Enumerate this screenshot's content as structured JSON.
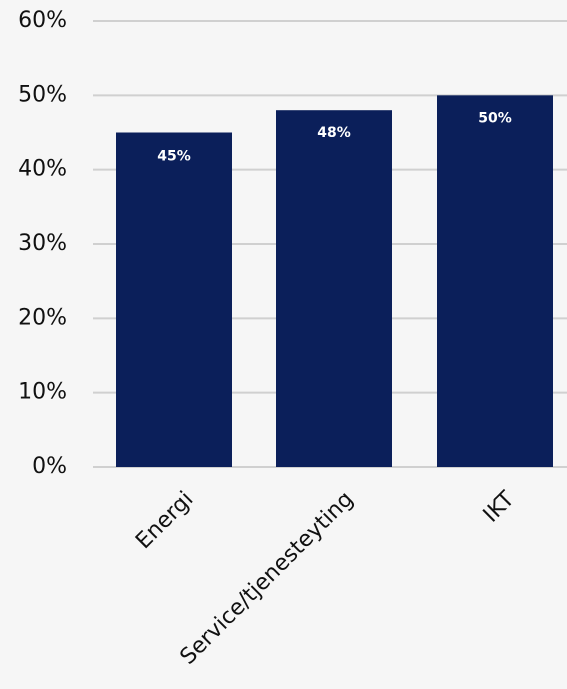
{
  "chart_data": {
    "type": "bar",
    "categories": [
      "Energi",
      "Service/tjenesteyting",
      "IKT"
    ],
    "values": [
      45,
      48,
      50
    ],
    "data_labels": [
      "45%",
      "48%",
      "50%"
    ],
    "y_ticks": [
      "0%",
      "10%",
      "20%",
      "30%",
      "40%",
      "50%",
      "60%"
    ],
    "y_tick_values": [
      0,
      10,
      20,
      30,
      40,
      50,
      60
    ],
    "ylim": [
      0,
      60
    ],
    "grid": true,
    "legend": "none"
  },
  "colors": {
    "bar": "#0b1f5a",
    "grid": "#d0d0d0",
    "background": "#f6f6f6",
    "data_label": "#ffffff"
  }
}
